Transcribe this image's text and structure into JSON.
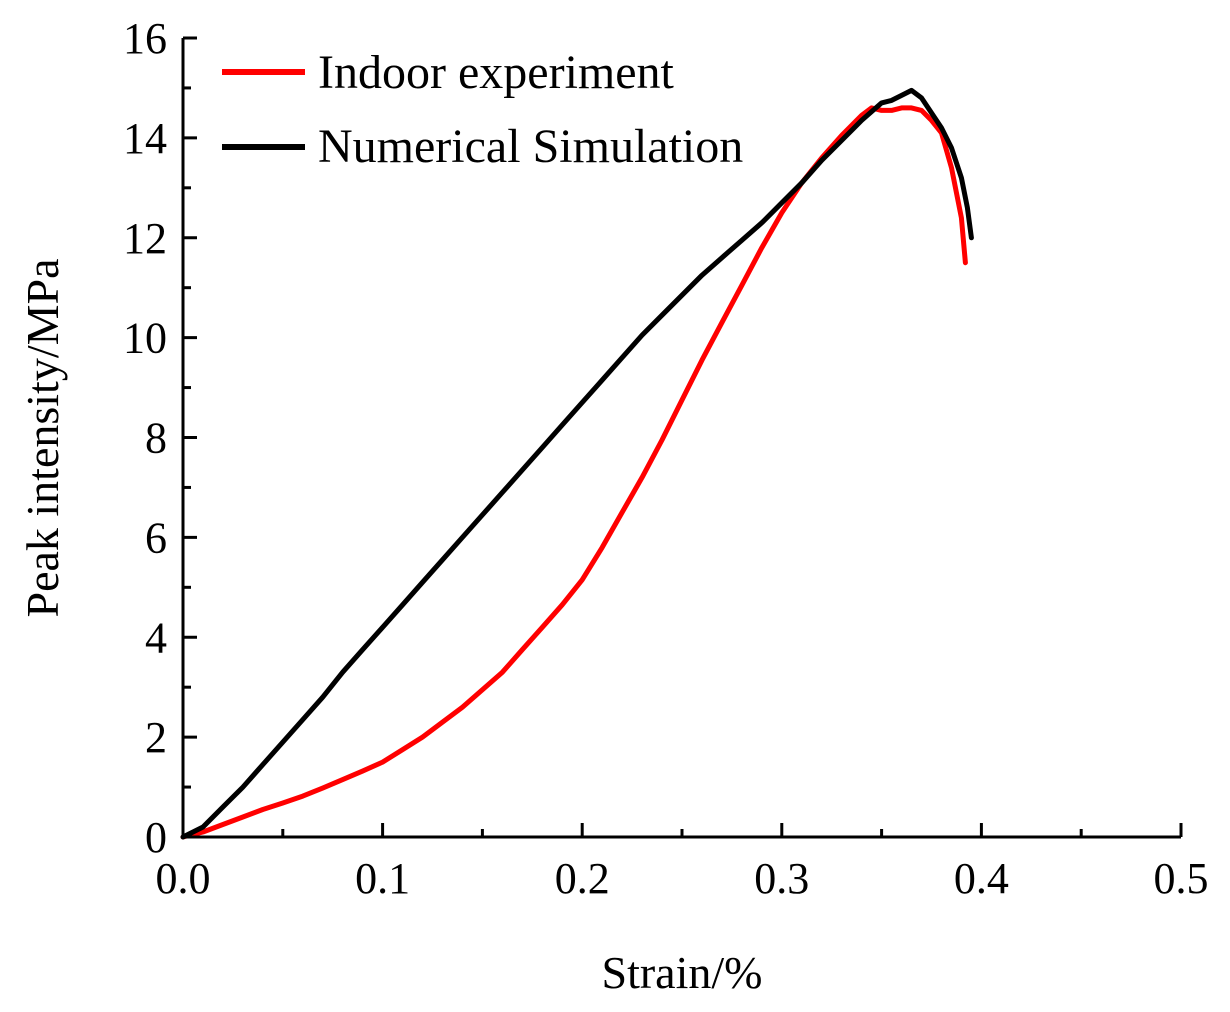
{
  "chart_data": {
    "type": "line",
    "title": "",
    "xlabel": "Strain/%",
    "ylabel": "Peak intensity/MPa",
    "xlim": [
      0,
      0.5
    ],
    "ylim": [
      0,
      16
    ],
    "x_ticks": [
      0.0,
      0.1,
      0.2,
      0.3,
      0.4,
      0.5
    ],
    "x_tick_labels": [
      "0.0",
      "0.1",
      "0.2",
      "0.3",
      "0.4",
      "0.5"
    ],
    "y_ticks": [
      0,
      2,
      4,
      6,
      8,
      10,
      12,
      14,
      16
    ],
    "y_tick_labels": [
      "0",
      "2",
      "4",
      "6",
      "8",
      "10",
      "12",
      "14",
      "16"
    ],
    "grid": false,
    "legend_position": "top-left",
    "series": [
      {
        "name": "Indoor experiment",
        "color": "#ff0000",
        "x": [
          0,
          0.01,
          0.02,
          0.03,
          0.04,
          0.05,
          0.06,
          0.07,
          0.08,
          0.09,
          0.1,
          0.11,
          0.12,
          0.13,
          0.14,
          0.15,
          0.16,
          0.17,
          0.18,
          0.19,
          0.2,
          0.21,
          0.22,
          0.23,
          0.24,
          0.25,
          0.26,
          0.27,
          0.28,
          0.29,
          0.3,
          0.31,
          0.32,
          0.33,
          0.34,
          0.345,
          0.35,
          0.355,
          0.36,
          0.365,
          0.37,
          0.375,
          0.38,
          0.385,
          0.39,
          0.392
        ],
        "y": [
          0,
          0.1,
          0.25,
          0.4,
          0.55,
          0.68,
          0.82,
          0.98,
          1.15,
          1.32,
          1.5,
          1.75,
          2.0,
          2.3,
          2.6,
          2.95,
          3.3,
          3.75,
          4.2,
          4.65,
          5.15,
          5.8,
          6.5,
          7.2,
          7.95,
          8.75,
          9.55,
          10.3,
          11.05,
          11.8,
          12.5,
          13.1,
          13.6,
          14.05,
          14.45,
          14.6,
          14.55,
          14.55,
          14.6,
          14.6,
          14.55,
          14.35,
          14.1,
          13.4,
          12.4,
          11.5
        ]
      },
      {
        "name": "Numerical Simulation",
        "color": "#000000",
        "x": [
          0,
          0.01,
          0.02,
          0.03,
          0.04,
          0.05,
          0.06,
          0.07,
          0.08,
          0.09,
          0.1,
          0.11,
          0.12,
          0.13,
          0.14,
          0.15,
          0.16,
          0.17,
          0.18,
          0.19,
          0.2,
          0.21,
          0.22,
          0.23,
          0.24,
          0.25,
          0.26,
          0.27,
          0.28,
          0.29,
          0.3,
          0.31,
          0.32,
          0.33,
          0.34,
          0.35,
          0.355,
          0.36,
          0.365,
          0.37,
          0.375,
          0.38,
          0.385,
          0.39,
          0.393,
          0.395
        ],
        "y": [
          0,
          0.2,
          0.6,
          1.0,
          1.45,
          1.9,
          2.35,
          2.8,
          3.3,
          3.75,
          4.2,
          4.65,
          5.1,
          5.55,
          6.0,
          6.45,
          6.9,
          7.35,
          7.8,
          8.25,
          8.7,
          9.15,
          9.6,
          10.05,
          10.45,
          10.85,
          11.25,
          11.6,
          11.95,
          12.3,
          12.7,
          13.1,
          13.55,
          13.95,
          14.35,
          14.7,
          14.75,
          14.85,
          14.95,
          14.8,
          14.5,
          14.2,
          13.8,
          13.2,
          12.6,
          12.0
        ]
      }
    ]
  }
}
